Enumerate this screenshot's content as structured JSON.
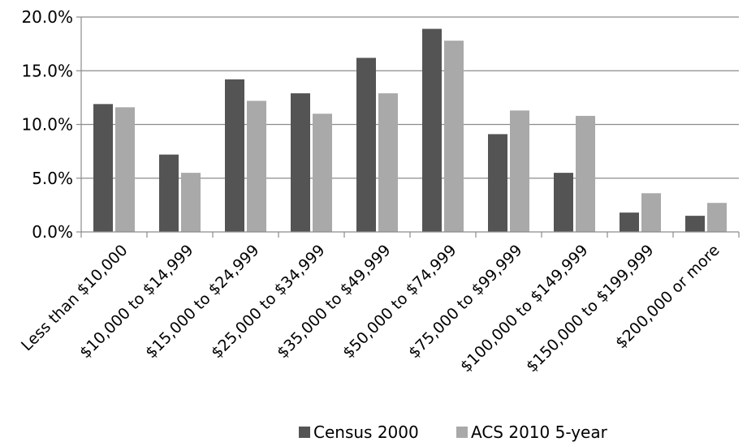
{
  "chart_data": {
    "type": "bar",
    "categories": [
      "Less than $10,000",
      "$10,000 to $14,999",
      "$15,000 to $24,999",
      "$25,000 to $34,999",
      "$35,000 to $49,999",
      "$50,000 to $74,999",
      "$75,000 to $99,999",
      "$100,000 to $149,999",
      "$150,000 to $199,999",
      "$200,000 or more"
    ],
    "series": [
      {
        "name": "Census 2000",
        "values": [
          11.9,
          7.2,
          14.2,
          12.9,
          16.2,
          18.9,
          9.1,
          5.5,
          1.8,
          1.5
        ],
        "color": "#545454"
      },
      {
        "name": "ACS 2010 5-year",
        "values": [
          11.6,
          5.5,
          12.2,
          11.0,
          12.9,
          17.8,
          11.3,
          10.8,
          3.6,
          2.7
        ],
        "color": "#a9a9a9"
      }
    ],
    "ylim": [
      0,
      20
    ],
    "yticks": [
      "0.0%",
      "5.0%",
      "10.0%",
      "15.0%",
      "20.0%"
    ],
    "grid": true,
    "legend_position": "bottom"
  }
}
